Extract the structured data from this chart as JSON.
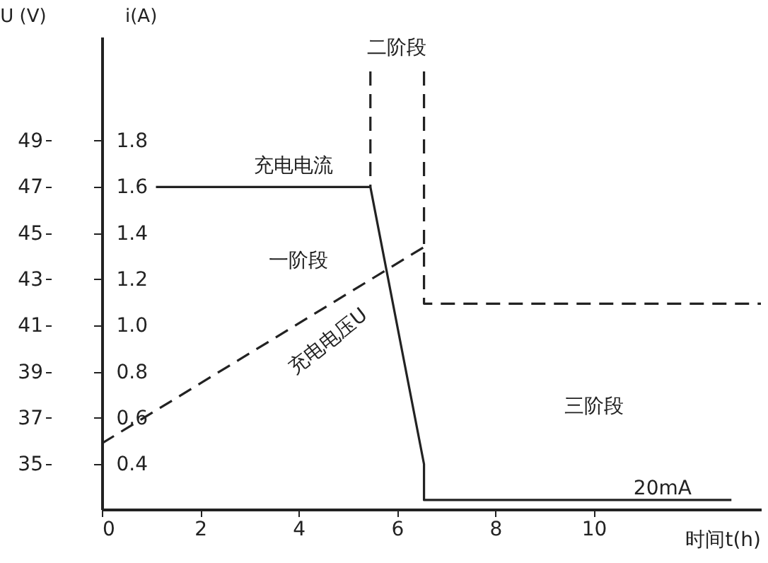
{
  "chart_data": {
    "type": "line",
    "xlabel": "时间t(h)",
    "ylabel": "U (V)",
    "y2label": "i(A)",
    "xlim": [
      0,
      13.4
    ],
    "xticks": [
      0,
      2,
      4,
      6,
      8,
      10
    ],
    "ylim": [
      33.05,
      53.5
    ],
    "yticks": [
      35,
      37,
      39,
      41,
      43,
      45,
      47,
      49
    ],
    "y2lim": [
      0.205,
      2.25
    ],
    "y2ticks": [
      0.4,
      0.6,
      0.8,
      {
        "value": 1.0,
        "label": "1.0"
      },
      1.2,
      1.4,
      1.6,
      1.8
    ],
    "grid": false,
    "marker": "none",
    "series": [
      {
        "color": "#222222",
        "line_style": "solid",
        "axis": "y2",
        "x": [
          1.1,
          5.46,
          6.55,
          6.55,
          12.8
        ],
        "values": [
          1.6,
          1.6,
          0.4,
          0.245,
          0.245
        ]
      },
      {
        "color": "#222222",
        "line_style": "dashed",
        "x": [
          0,
          6.55
        ],
        "values": [
          35.9,
          44.4
        ]
      },
      {
        "color": "#222222",
        "line_style": "dashed",
        "x": [
          5.46,
          5.46
        ],
        "values": [
          52.0,
          47.0
        ]
      },
      {
        "color": "#222222",
        "line_style": "dashed",
        "x": [
          6.55,
          6.55,
          13.4
        ],
        "values": [
          52.0,
          41.95,
          41.95
        ]
      }
    ],
    "annotations": [
      "充电电流",
      "一阶段",
      "二阶段",
      "三阶段",
      "充电电压U",
      "20mA"
    ]
  }
}
